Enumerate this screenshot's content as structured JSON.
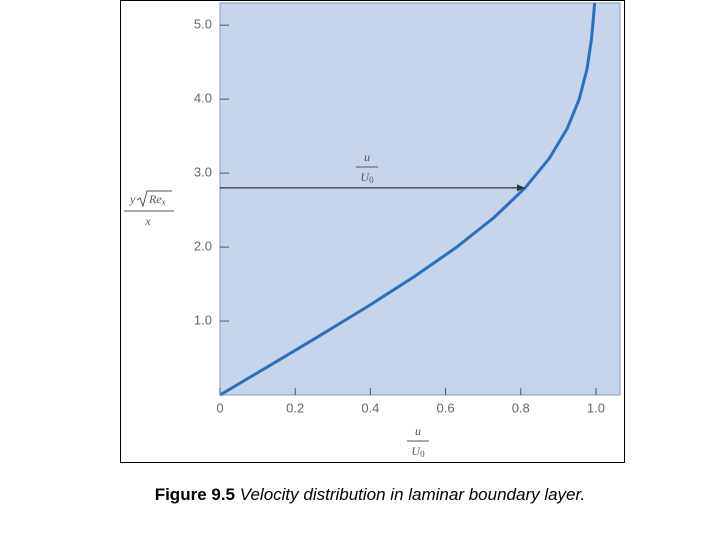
{
  "chart_data": {
    "type": "line",
    "x": [
      0,
      0.1328,
      0.2647,
      0.3938,
      0.5168,
      0.6298,
      0.729,
      0.8115,
      0.8761,
      0.9233,
      0.9555,
      0.9759,
      0.9878,
      0.9916,
      0.9965
    ],
    "values": [
      0,
      0.4,
      0.8,
      1.2,
      1.6,
      2.0,
      2.4,
      2.8,
      3.2,
      3.6,
      4.0,
      4.4,
      4.8,
      5.0,
      5.3
    ],
    "color": "#2b70bb",
    "background": "#c6d4ec",
    "xlim": [
      0,
      1.064
    ],
    "ylim": [
      0,
      5.3
    ],
    "xticks": [
      0,
      0.2,
      0.4,
      0.6,
      0.8,
      {
        "value": 1,
        "label": "1.0"
      }
    ],
    "yticks": [
      {
        "value": 1,
        "label": "1.0"
      },
      {
        "value": 2,
        "label": "2.0"
      },
      {
        "value": 3,
        "label": "3.0"
      },
      {
        "value": 4,
        "label": "4.0"
      },
      {
        "value": 5,
        "label": "5.0"
      }
    ],
    "xlabel": {
      "numerator": "u",
      "denominator": "U",
      "denominator_sub": "0"
    },
    "ylabel": {
      "numerator": "y",
      "root": "Re",
      "root_sub": "x",
      "denominator": "x"
    },
    "annotation": {
      "numerator": "u",
      "denominator": "U",
      "denominator_sub": "0",
      "y": 2.8,
      "x_end": 0.8115
    },
    "caption": {
      "label": "Figure 9.5",
      "text": "Velocity distribution in laminar boundary layer."
    }
  }
}
